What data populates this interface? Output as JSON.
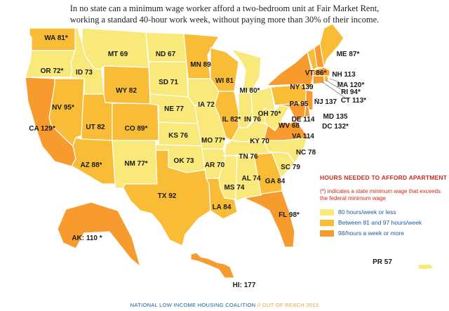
{
  "title": {
    "line1": "In no state can a minimum wage worker afford a two-bedroom unit at Fair Market Rent,",
    "line2": "working a standard 40-hour work week, without paying more than 30% of their income."
  },
  "colors": {
    "low": "#f9e87a",
    "mid": "#f9bc36",
    "high": "#f79b2e"
  },
  "states": {
    "WA": {
      "label": "WA 81*",
      "hours": 81,
      "asterisk": true
    },
    "OR": {
      "label": "OR 72*",
      "hours": 72,
      "asterisk": true
    },
    "CA": {
      "label": "CA 129*",
      "hours": 129,
      "asterisk": true
    },
    "NV": {
      "label": "NV 95*",
      "hours": 95,
      "asterisk": true
    },
    "ID": {
      "label": "ID 73",
      "hours": 73
    },
    "MT": {
      "label": "MT 69",
      "hours": 69
    },
    "WY": {
      "label": "WY 82",
      "hours": 82
    },
    "UT": {
      "label": "UT 82",
      "hours": 82
    },
    "AZ": {
      "label": "AZ 88*",
      "hours": 88,
      "asterisk": true
    },
    "CO": {
      "label": "CO 89*",
      "hours": 89,
      "asterisk": true
    },
    "NM": {
      "label": "NM 77*",
      "hours": 77,
      "asterisk": true
    },
    "ND": {
      "label": "ND 67",
      "hours": 67
    },
    "SD": {
      "label": "SD 71",
      "hours": 71
    },
    "NE": {
      "label": "NE 77",
      "hours": 77
    },
    "KS": {
      "label": "KS 76",
      "hours": 76
    },
    "OK": {
      "label": "OK 73",
      "hours": 73
    },
    "TX": {
      "label": "TX 92",
      "hours": 92
    },
    "MN": {
      "label": "MN 89",
      "hours": 89
    },
    "IA": {
      "label": "IA 72",
      "hours": 72
    },
    "MO": {
      "label": "MO 77*",
      "hours": 77,
      "asterisk": true
    },
    "AR": {
      "label": "AR 70",
      "hours": 70
    },
    "LA": {
      "label": "LA 84",
      "hours": 84
    },
    "WI": {
      "label": "WI 81",
      "hours": 81
    },
    "IL": {
      "label": "IL 82*",
      "hours": 82,
      "asterisk": true
    },
    "MI": {
      "label": "MI 80*",
      "hours": 80,
      "asterisk": true
    },
    "IN": {
      "label": "IN 76",
      "hours": 76
    },
    "OH": {
      "label": "OH 70*",
      "hours": 70,
      "asterisk": true
    },
    "KY": {
      "label": "KY 70",
      "hours": 70
    },
    "TN": {
      "label": "TN 76",
      "hours": 76
    },
    "MS": {
      "label": "MS 74",
      "hours": 74
    },
    "AL": {
      "label": "AL 74",
      "hours": 74
    },
    "GA": {
      "label": "GA 84",
      "hours": 84
    },
    "FL": {
      "label": "FL 98*",
      "hours": 98,
      "asterisk": true
    },
    "SC": {
      "label": "SC 79",
      "hours": 79
    },
    "NC": {
      "label": "NC 78",
      "hours": 78
    },
    "VA": {
      "label": "VA 114",
      "hours": 114
    },
    "WV": {
      "label": "WV 68",
      "hours": 68
    },
    "PA": {
      "label": "PA 95",
      "hours": 95
    },
    "NY": {
      "label": "NY 139",
      "hours": 139
    },
    "NJ": {
      "label": "NJ 137",
      "hours": 137
    },
    "DE": {
      "label": "DE 114",
      "hours": 114
    },
    "MD": {
      "label": "MD 135",
      "hours": 135
    },
    "DC": {
      "label": "DC 132*",
      "hours": 132,
      "asterisk": true
    },
    "VT": {
      "label": "VT 86*",
      "hours": 86,
      "asterisk": true
    },
    "NH": {
      "label": "NH 113",
      "hours": 113
    },
    "ME": {
      "label": "ME 87*",
      "hours": 87,
      "asterisk": true
    },
    "MA": {
      "label": "MA 120*",
      "hours": 120,
      "asterisk": true
    },
    "RI": {
      "label": "RI 94*",
      "hours": 94,
      "asterisk": true
    },
    "CT": {
      "label": "CT 113*",
      "hours": 113,
      "asterisk": true
    },
    "AK": {
      "label": "AK:  110 *",
      "hours": 110,
      "asterisk": true
    },
    "HI": {
      "label": "HI: 177",
      "hours": 177
    },
    "PR": {
      "label": "PR 57",
      "hours": 57
    }
  },
  "legend": {
    "heading": "HOURS NEEDED TO AFFORD APARTMENT",
    "note_line1": "(*) indicates a state minimum wage that exceeds",
    "note_line2": "the federal minimum wage",
    "items": [
      {
        "label": "80 hours/week or less",
        "color": "#f9e87a"
      },
      {
        "label": "Between 81 and 97 hours/week",
        "color": "#f9bc36"
      },
      {
        "label": "98/hours a week or more",
        "color": "#f79b2e"
      }
    ]
  },
  "footer": {
    "org": "NATIONAL LOW INCOME HOUSING COALITION",
    "separator": " // ",
    "publication": "OUT OF REACH 2013"
  }
}
